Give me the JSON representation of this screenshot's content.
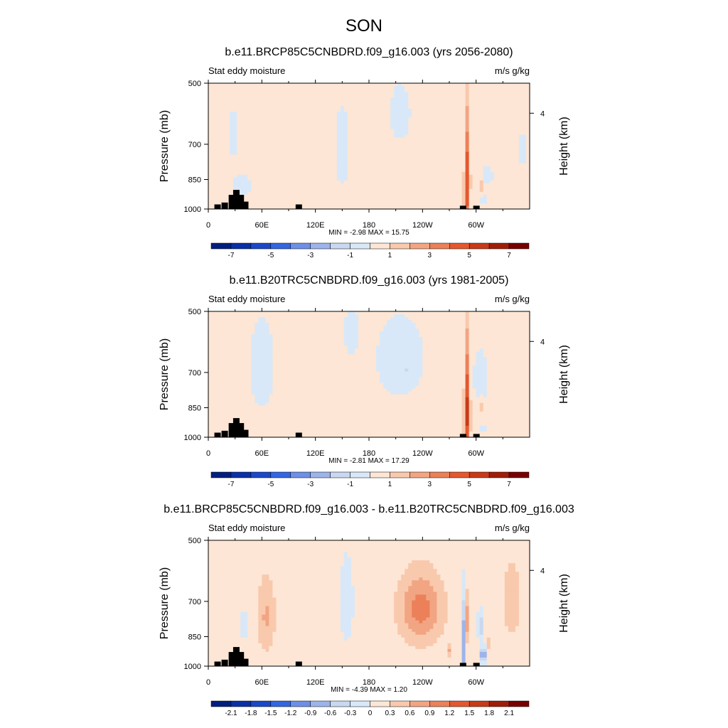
{
  "figure": {
    "title": "SON"
  },
  "colors": {
    "diverging": [
      "#001f7f",
      "#0a30a6",
      "#1a48c8",
      "#3366e0",
      "#6d8fe6",
      "#9db4ea",
      "#c8d8f0",
      "#d8e8f8",
      "#fde6d5",
      "#f9c9ad",
      "#f2a583",
      "#ec8058",
      "#e4582f",
      "#c73b18",
      "#a01e08",
      "#770000"
    ],
    "land": "#000000"
  },
  "chart_data": [
    {
      "type": "heatmap",
      "id": "future",
      "title": "b.e11.BRCP85C5CNBDRD.f09_g16.003 (yrs 2056-2080)",
      "left_label": "Stat eddy moisture",
      "right_label": "m/s g/kg",
      "xlabel": "",
      "ylabel": "Pressure (mb)",
      "ylabel_right": "Height (km)",
      "xticks": [
        "0",
        "60E",
        "120E",
        "180",
        "120W",
        "60W"
      ],
      "yticks": [
        "500",
        "700",
        "850",
        "1000"
      ],
      "yticks_right": [
        "4"
      ],
      "stats": "MIN =  -2.98  MAX =  15.75",
      "min": -2.98,
      "max": 15.75,
      "colorbar_labels": [
        "-7",
        "-5",
        "-3",
        "-1",
        "1",
        "3",
        "5",
        "7"
      ],
      "features": [
        {
          "lon": 215,
          "p": 590,
          "dlon": 12,
          "dp": 95,
          "v": -1.2
        },
        {
          "lon": 150,
          "p": 720,
          "dlon": 9,
          "dp": 170,
          "v": -1.1
        },
        {
          "lon": 38,
          "p": 880,
          "dlon": 12,
          "dp": 60,
          "v": -1.0
        },
        {
          "lon": 28,
          "p": 660,
          "dlon": 4,
          "dp": 130,
          "v": -0.9
        },
        {
          "lon": 12,
          "p": 930,
          "dlon": 5,
          "dp": 45,
          "v": 1.2
        },
        {
          "lon": 280,
          "p": 930,
          "dlon": 6,
          "dp": 60,
          "v": 1.5
        },
        {
          "lon": 270,
          "p": 860,
          "dlon": 4,
          "dp": 30,
          "v": 1.4
        },
        {
          "lon": 290,
          "p": 860,
          "dlon": 3,
          "dp": 300,
          "v": 9.0
        },
        {
          "lon": 305,
          "p": 880,
          "dlon": 2,
          "dp": 40,
          "v": 3.5
        },
        {
          "lon": 308,
          "p": 945,
          "dlon": 2,
          "dp": 25,
          "v": -3.0
        },
        {
          "lon": 352,
          "p": 720,
          "dlon": 6,
          "dp": 70,
          "v": -1.1
        },
        {
          "lon": 312,
          "p": 830,
          "dlon": 8,
          "dp": 55,
          "v": -1.0
        }
      ],
      "land": [
        [
          10,
          975
        ],
        [
          18,
          965
        ],
        [
          26,
          925
        ],
        [
          31,
          900
        ],
        [
          36,
          925
        ],
        [
          41,
          960
        ],
        [
          101,
          975
        ],
        [
          285,
          982
        ],
        [
          300,
          982
        ]
      ]
    },
    {
      "type": "heatmap",
      "id": "historical",
      "title": "b.e11.B20TRC5CNBDRD.f09_g16.003 (yrs 1981-2005)",
      "left_label": "Stat eddy moisture",
      "right_label": "m/s g/kg",
      "xlabel": "",
      "ylabel": "Pressure (mb)",
      "ylabel_right": "Height (km)",
      "xticks": [
        "0",
        "60E",
        "120E",
        "180",
        "120W",
        "60W"
      ],
      "yticks": [
        "500",
        "700",
        "850",
        "1000"
      ],
      "yticks_right": [
        "4"
      ],
      "stats": "MIN =  -2.81  MAX =  17.29",
      "min": -2.81,
      "max": 17.29,
      "colorbar_labels": [
        "-7",
        "-5",
        "-3",
        "-1",
        "1",
        "3",
        "5",
        "7"
      ],
      "features": [
        {
          "lon": 215,
          "p": 650,
          "dlon": 30,
          "dp": 160,
          "v": -1.1
        },
        {
          "lon": 222,
          "p": 690,
          "dlon": 4,
          "dp": 15,
          "v": -1.8
        },
        {
          "lon": 60,
          "p": 680,
          "dlon": 16,
          "dp": 200,
          "v": -1.0
        },
        {
          "lon": 160,
          "p": 560,
          "dlon": 10,
          "dp": 90,
          "v": -0.9
        },
        {
          "lon": 305,
          "p": 720,
          "dlon": 10,
          "dp": 140,
          "v": -0.9
        },
        {
          "lon": 280,
          "p": 935,
          "dlon": 7,
          "dp": 60,
          "v": 1.6
        },
        {
          "lon": 290,
          "p": 860,
          "dlon": 3,
          "dp": 300,
          "v": 10.0
        },
        {
          "lon": 305,
          "p": 850,
          "dlon": 2,
          "dp": 40,
          "v": 3.0
        },
        {
          "lon": 308,
          "p": 960,
          "dlon": 2,
          "dp": 20,
          "v": -2.5
        }
      ],
      "land": [
        [
          10,
          975
        ],
        [
          18,
          965
        ],
        [
          26,
          925
        ],
        [
          31,
          900
        ],
        [
          36,
          925
        ],
        [
          41,
          960
        ],
        [
          101,
          975
        ],
        [
          285,
          982
        ],
        [
          300,
          982
        ]
      ]
    },
    {
      "type": "heatmap",
      "id": "difference",
      "title": "b.e11.BRCP85C5CNBDRD.f09_g16.003 - b.e11.B20TRC5CNBDRD.f09_g16.003",
      "left_label": "Stat eddy moisture",
      "right_label": "m/s g/kg",
      "xlabel": "",
      "ylabel": "Pressure (mb)",
      "ylabel_right": "Height (km)",
      "xticks": [
        "0",
        "60E",
        "120E",
        "180",
        "120W",
        "60W"
      ],
      "yticks": [
        "500",
        "700",
        "850",
        "1000"
      ],
      "yticks_right": [
        "4"
      ],
      "stats": "MIN =  -4.39  MAX =   1.20",
      "min": -4.39,
      "max": 1.2,
      "colorbar_labels": [
        "-2.1",
        "-1.8",
        "-1.5",
        "-1.2",
        "-0.9",
        "-0.6",
        "-0.3",
        "0",
        "0.3",
        "0.6",
        "0.9",
        "1.2",
        "1.5",
        "1.8",
        "2.1"
      ],
      "features": [
        {
          "lon": 238,
          "p": 730,
          "dlon": 24,
          "dp": 140,
          "v": 0.95
        },
        {
          "lon": 65,
          "p": 760,
          "dlon": 10,
          "dp": 160,
          "v": 0.55
        },
        {
          "lon": 340,
          "p": 700,
          "dlon": 10,
          "dp": 150,
          "v": 0.45
        },
        {
          "lon": 155,
          "p": 700,
          "dlon": 9,
          "dp": 200,
          "v": -0.2
        },
        {
          "lon": 40,
          "p": 800,
          "dlon": 6,
          "dp": 80,
          "v": -0.2
        },
        {
          "lon": 110,
          "p": 700,
          "dlon": 10,
          "dp": 300,
          "v": 0.15
        },
        {
          "lon": 287,
          "p": 880,
          "dlon": 2,
          "dp": 200,
          "v": -1.2
        },
        {
          "lon": 291,
          "p": 780,
          "dlon": 2,
          "dp": 120,
          "v": 0.9
        },
        {
          "lon": 305,
          "p": 800,
          "dlon": 3,
          "dp": 60,
          "v": -0.7
        },
        {
          "lon": 308,
          "p": 940,
          "dlon": 3,
          "dp": 35,
          "v": -1.5
        },
        {
          "lon": 270,
          "p": 920,
          "dlon": 3,
          "dp": 40,
          "v": 0.5
        },
        {
          "lon": 315,
          "p": 880,
          "dlon": 2,
          "dp": 35,
          "v": 0.6
        }
      ],
      "land": [
        [
          10,
          975
        ],
        [
          18,
          965
        ],
        [
          26,
          925
        ],
        [
          31,
          900
        ],
        [
          36,
          925
        ],
        [
          41,
          960
        ],
        [
          101,
          975
        ],
        [
          285,
          982
        ],
        [
          300,
          982
        ]
      ]
    }
  ]
}
